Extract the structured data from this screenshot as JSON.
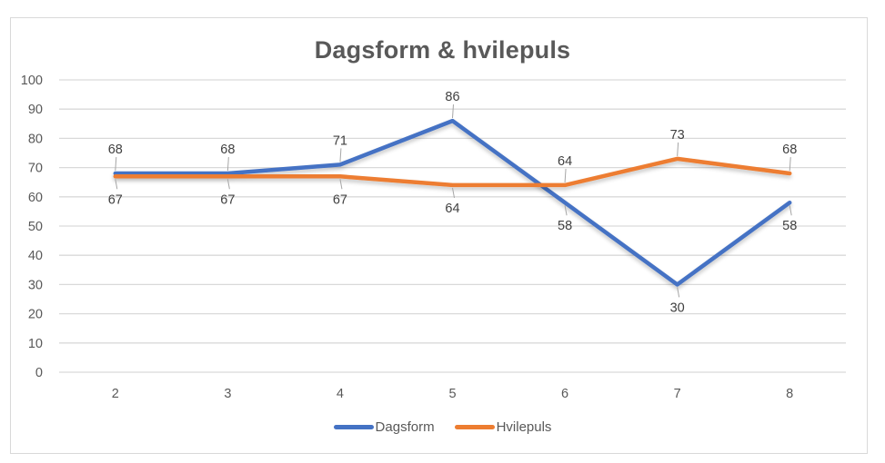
{
  "chart_data": {
    "type": "line",
    "title": "Dagsform & hvilepuls",
    "xlabel": "",
    "ylabel": "",
    "categories": [
      "2",
      "3",
      "4",
      "5",
      "6",
      "7",
      "8"
    ],
    "ylim": [
      0,
      100
    ],
    "yticks": [
      0,
      10,
      20,
      30,
      40,
      50,
      60,
      70,
      80,
      90,
      100
    ],
    "grid": true,
    "legend_position": "bottom",
    "data_labels": true,
    "series": [
      {
        "name": "Dagsform",
        "color": "#4472C4",
        "values": [
          68,
          68,
          71,
          86,
          58,
          30,
          58
        ],
        "label_side": [
          "above",
          "above",
          "above",
          "above",
          "below",
          "below",
          "below"
        ]
      },
      {
        "name": "Hvilepuls",
        "color": "#ED7D31",
        "values": [
          67,
          67,
          67,
          64,
          64,
          73,
          68
        ],
        "label_side": [
          "below",
          "below",
          "below",
          "below",
          "above",
          "above",
          "above"
        ]
      }
    ]
  },
  "legend": {
    "items": [
      {
        "label": "Dagsform",
        "color": "#4472C4"
      },
      {
        "label": "Hvilepuls",
        "color": "#ED7D31"
      }
    ]
  }
}
